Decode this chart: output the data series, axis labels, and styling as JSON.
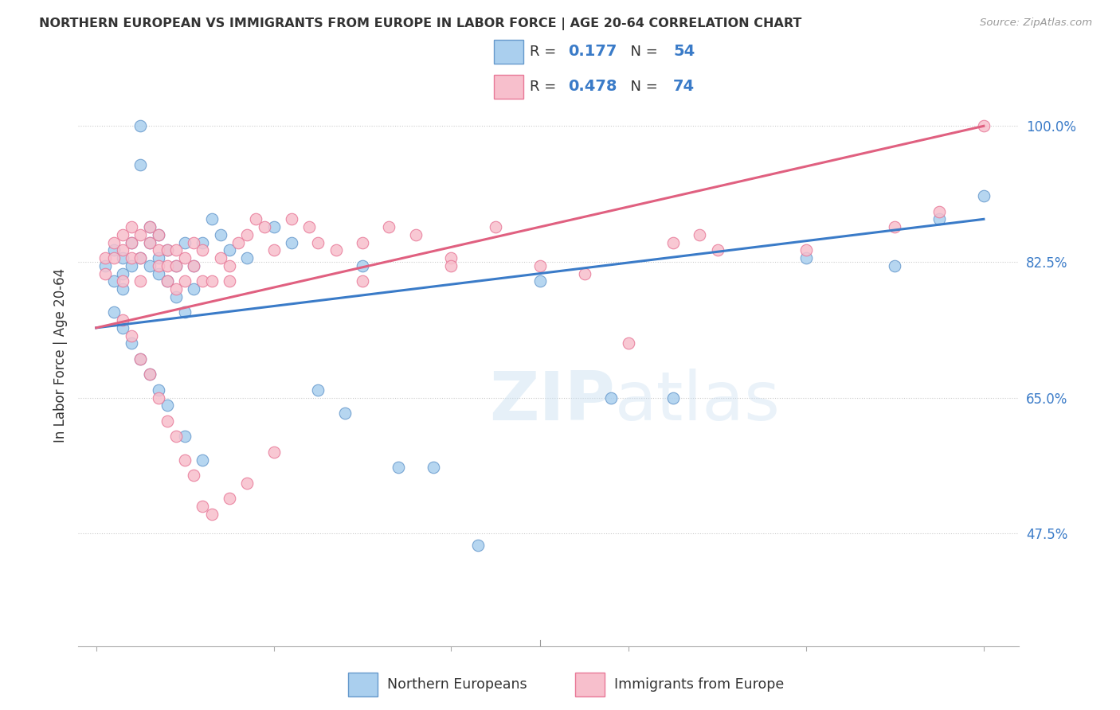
{
  "title": "NORTHERN EUROPEAN VS IMMIGRANTS FROM EUROPE IN LABOR FORCE | AGE 20-64 CORRELATION CHART",
  "source": "Source: ZipAtlas.com",
  "ylabel": "In Labor Force | Age 20-64",
  "yticks": [
    47.5,
    65.0,
    82.5,
    100.0
  ],
  "ytick_labels": [
    "47.5%",
    "65.0%",
    "82.5%",
    "100.0%"
  ],
  "xrange": [
    0.0,
    100.0
  ],
  "yrange": [
    33.0,
    108.0
  ],
  "blue_R": 0.177,
  "blue_N": 54,
  "pink_R": 0.478,
  "pink_N": 74,
  "legend_label_blue": "Northern Europeans",
  "legend_label_pink": "Immigrants from Europe",
  "watermark": "ZIPatlas",
  "blue_line_x": [
    0,
    100
  ],
  "blue_line_y0": 74.0,
  "blue_line_y1": 88.0,
  "pink_line_x": [
    0,
    100
  ],
  "pink_line_y0": 74.0,
  "pink_line_y1": 100.0,
  "blue_scatter_x": [
    1,
    2,
    2,
    3,
    3,
    3,
    4,
    4,
    5,
    5,
    5,
    6,
    6,
    6,
    7,
    7,
    7,
    8,
    8,
    9,
    9,
    10,
    10,
    11,
    11,
    12,
    13,
    14,
    15,
    17,
    20,
    22,
    25,
    28,
    30,
    34,
    38,
    43,
    50,
    58,
    65,
    80,
    90,
    95,
    100,
    2,
    3,
    4,
    5,
    6,
    7,
    8,
    10,
    12
  ],
  "blue_scatter_y": [
    82,
    84,
    80,
    83,
    81,
    79,
    85,
    82,
    100,
    95,
    83,
    87,
    85,
    82,
    86,
    83,
    81,
    84,
    80,
    82,
    78,
    85,
    76,
    82,
    79,
    85,
    88,
    86,
    84,
    83,
    87,
    85,
    66,
    63,
    82,
    56,
    56,
    46,
    80,
    65,
    65,
    83,
    82,
    88,
    91,
    76,
    74,
    72,
    70,
    68,
    66,
    64,
    60,
    57
  ],
  "pink_scatter_x": [
    1,
    1,
    2,
    2,
    3,
    3,
    3,
    4,
    4,
    4,
    5,
    5,
    5,
    6,
    6,
    7,
    7,
    7,
    8,
    8,
    8,
    9,
    9,
    9,
    10,
    10,
    11,
    11,
    12,
    12,
    13,
    14,
    15,
    15,
    16,
    17,
    18,
    19,
    20,
    22,
    24,
    25,
    27,
    30,
    33,
    36,
    40,
    45,
    50,
    55,
    60,
    65,
    68,
    70,
    80,
    90,
    95,
    100,
    3,
    4,
    5,
    6,
    7,
    8,
    9,
    10,
    11,
    12,
    13,
    15,
    17,
    20,
    30,
    40
  ],
  "pink_scatter_y": [
    83,
    81,
    85,
    83,
    86,
    84,
    80,
    87,
    85,
    83,
    86,
    83,
    80,
    87,
    85,
    86,
    84,
    82,
    84,
    82,
    80,
    84,
    82,
    79,
    83,
    80,
    85,
    82,
    84,
    80,
    80,
    83,
    82,
    80,
    85,
    86,
    88,
    87,
    84,
    88,
    87,
    85,
    84,
    85,
    87,
    86,
    83,
    87,
    82,
    81,
    72,
    85,
    86,
    84,
    84,
    87,
    89,
    100,
    75,
    73,
    70,
    68,
    65,
    62,
    60,
    57,
    55,
    51,
    50,
    52,
    54,
    58,
    80,
    82
  ]
}
